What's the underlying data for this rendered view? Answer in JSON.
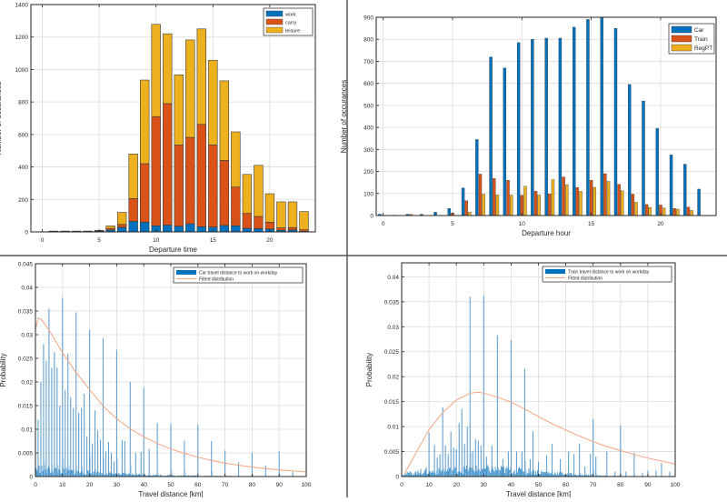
{
  "chart_data": [
    {
      "id": "departure-time-purpose",
      "type": "bar",
      "stacked": true,
      "title": "",
      "xlabel": "Departure time",
      "ylabel": "Number of occurances",
      "xlim": [
        -1,
        24
      ],
      "ylim": [
        0,
        1400
      ],
      "xticks": [
        0,
        5,
        10,
        15,
        20
      ],
      "yticks": [
        0,
        200,
        400,
        600,
        800,
        1000,
        1200,
        1400
      ],
      "grid": true,
      "legend_position": "top-right",
      "x": [
        0,
        1,
        2,
        3,
        4,
        5,
        6,
        7,
        8,
        9,
        10,
        11,
        12,
        13,
        14,
        15,
        16,
        17,
        18,
        19,
        20,
        21,
        22,
        23
      ],
      "series": [
        {
          "name": "work",
          "color": "#0072BD",
          "values": [
            0,
            3,
            3,
            3,
            3,
            6,
            12,
            28,
            65,
            60,
            38,
            42,
            35,
            50,
            32,
            30,
            40,
            38,
            22,
            20,
            18,
            10,
            12,
            3
          ]
        },
        {
          "name": "carry",
          "color": "#D95319",
          "values": [
            0,
            1,
            1,
            1,
            1,
            2,
            10,
            18,
            140,
            360,
            672,
            748,
            500,
            532,
            630,
            505,
            400,
            238,
            92,
            75,
            42,
            15,
            15,
            10
          ]
        },
        {
          "name": "leisure",
          "color": "#EDB120",
          "values": [
            0,
            1,
            1,
            1,
            1,
            1,
            15,
            74,
            275,
            515,
            568,
            430,
            432,
            600,
            588,
            522,
            490,
            340,
            240,
            315,
            175,
            160,
            158,
            112
          ]
        }
      ]
    },
    {
      "id": "departure-hour-mode",
      "type": "bar",
      "stacked": false,
      "title": "",
      "xlabel": "Departure hour",
      "ylabel": "Number of occurances",
      "xlim": [
        -0.5,
        24
      ],
      "ylim": [
        0,
        900
      ],
      "xticks": [
        0,
        5,
        10,
        15,
        20
      ],
      "yticks": [
        0,
        100,
        200,
        300,
        400,
        500,
        600,
        700,
        800,
        900
      ],
      "grid": true,
      "legend_position": "top-right",
      "x": [
        0,
        1,
        2,
        3,
        4,
        5,
        6,
        7,
        8,
        9,
        10,
        11,
        12,
        13,
        14,
        15,
        16,
        17,
        18,
        19,
        20,
        21,
        22,
        23
      ],
      "series": [
        {
          "name": "Car",
          "color": "#0072BD",
          "values": [
            6,
            2,
            6,
            6,
            15,
            32,
            125,
            345,
            720,
            670,
            785,
            800,
            805,
            805,
            855,
            890,
            900,
            850,
            595,
            520,
            395,
            275,
            233,
            120
          ]
        },
        {
          "name": "Train",
          "color": "#D95319",
          "values": [
            0,
            0,
            5,
            0,
            0,
            12,
            67,
            188,
            168,
            160,
            92,
            110,
            98,
            175,
            127,
            160,
            190,
            142,
            97,
            50,
            48,
            32,
            38,
            0
          ]
        },
        {
          "name": "RegPT",
          "color": "#EDB120",
          "values": [
            0,
            0,
            0,
            0,
            0,
            0,
            15,
            97,
            93,
            93,
            133,
            93,
            163,
            140,
            110,
            128,
            155,
            113,
            60,
            36,
            34,
            29,
            23,
            0
          ]
        }
      ]
    },
    {
      "id": "car-travel-distance",
      "type": "bar",
      "title": "",
      "xlabel": "Travel distance [km]",
      "ylabel": "Probability",
      "xlim": [
        0,
        100
      ],
      "ylim": [
        0,
        0.045
      ],
      "xticks": [
        0,
        10,
        20,
        30,
        40,
        50,
        60,
        70,
        80,
        90,
        100
      ],
      "yticks": [
        0,
        0.005,
        0.01,
        0.015,
        0.02,
        0.025,
        0.03,
        0.035,
        0.04,
        0.045
      ],
      "grid": true,
      "legend_position": "top-right",
      "legend": [
        "Car travel distance to work on workday",
        "Fitted distribution"
      ],
      "histogram": {
        "name": "Car travel distance to work on workday",
        "color": "#0072BD",
        "spikes": [
          [
            1,
            0.012
          ],
          [
            2,
            0.02
          ],
          [
            3,
            0.028
          ],
          [
            4,
            0.0245
          ],
          [
            5,
            0.0355
          ],
          [
            6,
            0.023
          ],
          [
            7,
            0.0263
          ],
          [
            8,
            0.023
          ],
          [
            9,
            0.015
          ],
          [
            10,
            0.0378
          ],
          [
            11,
            0.0183
          ],
          [
            12,
            0.026
          ],
          [
            13,
            0.0168
          ],
          [
            14,
            0.0145
          ],
          [
            15,
            0.0347
          ],
          [
            16,
            0.0135
          ],
          [
            17,
            0.0145
          ],
          [
            18,
            0.0175
          ],
          [
            19,
            0.0085
          ],
          [
            20,
            0.031
          ],
          [
            21,
            0.007
          ],
          [
            22,
            0.014
          ],
          [
            23,
            0.0097
          ],
          [
            24,
            0.0078
          ],
          [
            25,
            0.0293
          ],
          [
            26,
            0.0053
          ],
          [
            27,
            0.0073
          ],
          [
            28,
            0.005
          ],
          [
            29,
            0.0032
          ],
          [
            30,
            0.0268
          ],
          [
            32,
            0.0078
          ],
          [
            33,
            0.0075
          ],
          [
            35,
            0.02
          ],
          [
            37,
            0.005
          ],
          [
            39,
            0.0052
          ],
          [
            40,
            0.0188
          ],
          [
            42,
            0.0058
          ],
          [
            45,
            0.0113
          ],
          [
            50,
            0.0112
          ],
          [
            55,
            0.0076
          ],
          [
            60,
            0.011
          ],
          [
            65,
            0.0075
          ],
          [
            70,
            0.0055
          ],
          [
            75,
            0.003
          ],
          [
            80,
            0.005
          ],
          [
            85,
            0.0023
          ],
          [
            90,
            0.0053
          ],
          [
            95,
            0.001
          ],
          [
            100,
            0.0053
          ]
        ]
      },
      "fit": {
        "name": "Fitted distribution",
        "color": "#F4A582",
        "x": [
          0,
          1,
          2,
          5,
          10,
          15,
          20,
          25,
          30,
          35,
          40,
          45,
          50,
          55,
          60,
          65,
          70,
          75,
          80,
          85,
          90,
          95,
          100
        ],
        "y": [
          0.031,
          0.0335,
          0.0333,
          0.031,
          0.0262,
          0.022,
          0.0184,
          0.0149,
          0.0122,
          0.0101,
          0.0084,
          0.007,
          0.0058,
          0.0049,
          0.0041,
          0.0034,
          0.0028,
          0.0024,
          0.002,
          0.0017,
          0.0014,
          0.0012,
          0.001
        ]
      }
    },
    {
      "id": "train-travel-distance",
      "type": "bar",
      "title": "",
      "xlabel": "Travel distance [km]",
      "ylabel": "Probability",
      "xlim": [
        0,
        100
      ],
      "ylim": [
        0,
        0.0428
      ],
      "xticks": [
        0,
        10,
        20,
        30,
        40,
        50,
        60,
        70,
        80,
        90,
        100
      ],
      "yticks": [
        0,
        0.005,
        0.01,
        0.015,
        0.02,
        0.025,
        0.03,
        0.035,
        0.04
      ],
      "grid": true,
      "legend_position": "top-right",
      "legend": [
        "Train travel distance to work on workday",
        "Fitted distribution"
      ],
      "histogram": {
        "name": "Train travel distance to work on workday",
        "color": "#0072BD",
        "spikes": [
          [
            3,
            0.001
          ],
          [
            5,
            0.001
          ],
          [
            7,
            0.0015
          ],
          [
            9,
            0.0018
          ],
          [
            10,
            0.0088
          ],
          [
            12,
            0.0063
          ],
          [
            13,
            0.0038
          ],
          [
            14,
            0.0045
          ],
          [
            15,
            0.0139
          ],
          [
            16,
            0.0062
          ],
          [
            17,
            0.0045
          ],
          [
            18,
            0.009
          ],
          [
            19,
            0.0058
          ],
          [
            20,
            0.0055
          ],
          [
            21,
            0.0107
          ],
          [
            22,
            0.0135
          ],
          [
            23,
            0.0065
          ],
          [
            24,
            0.01
          ],
          [
            25,
            0.036
          ],
          [
            26,
            0.0052
          ],
          [
            27,
            0.0075
          ],
          [
            28,
            0.0072
          ],
          [
            29,
            0.0062
          ],
          [
            30,
            0.0362
          ],
          [
            31,
            0.004
          ],
          [
            33,
            0.0062
          ],
          [
            35,
            0.0283
          ],
          [
            37,
            0.0035
          ],
          [
            39,
            0.005
          ],
          [
            40,
            0.0273
          ],
          [
            42,
            0.005
          ],
          [
            44,
            0.005
          ],
          [
            45,
            0.0216
          ],
          [
            47,
            0.0035
          ],
          [
            48,
            0.0091
          ],
          [
            50,
            0.003
          ],
          [
            53,
            0.0042
          ],
          [
            55,
            0.0065
          ],
          [
            58,
            0.0035
          ],
          [
            61,
            0.005
          ],
          [
            63,
            0.0045
          ],
          [
            65,
            0.0066
          ],
          [
            67,
            0.002
          ],
          [
            69,
            0.0045
          ],
          [
            70,
            0.0115
          ],
          [
            71,
            0.004
          ],
          [
            75,
            0.005
          ],
          [
            78,
            0.001
          ],
          [
            80,
            0.0102
          ],
          [
            82,
            0.001
          ],
          [
            85,
            0.0048
          ],
          [
            88,
            0.0008
          ],
          [
            90,
            0.0012
          ],
          [
            93,
            0.0012
          ],
          [
            95,
            0.0027
          ],
          [
            98,
            0.001
          ]
        ]
      },
      "fit": {
        "name": "Fitted distribution",
        "color": "#F4A582",
        "x": [
          1,
          5,
          10,
          15,
          20,
          25,
          28,
          30,
          35,
          40,
          45,
          50,
          55,
          60,
          65,
          70,
          75,
          80,
          85,
          90,
          95,
          100
        ],
        "y": [
          0.0005,
          0.0045,
          0.0094,
          0.0128,
          0.0153,
          0.0167,
          0.0169,
          0.0167,
          0.0159,
          0.0149,
          0.0135,
          0.012,
          0.0106,
          0.0093,
          0.0081,
          0.007,
          0.006,
          0.0052,
          0.0044,
          0.0037,
          0.0031,
          0.0025
        ]
      }
    }
  ],
  "grid_colors": {
    "grid": "#DCDCDC",
    "axis": "#262626",
    "divider": "#555555"
  }
}
